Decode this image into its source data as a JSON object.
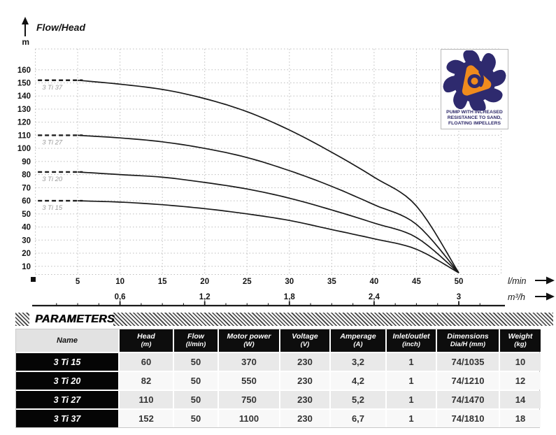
{
  "chart": {
    "title": "Flow/Head",
    "y_unit": "m",
    "x_unit_primary": "l/min",
    "x_unit_secondary": "m³/h"
  },
  "chart_data": {
    "type": "line",
    "title": "Flow/Head",
    "ylabel": "m",
    "xlabel_primary": "l/min",
    "xlabel_secondary": "m³/h",
    "xlim": [
      0,
      55
    ],
    "ylim": [
      0,
      175
    ],
    "grid": true,
    "y_ticks": [
      160,
      150,
      140,
      130,
      120,
      110,
      100,
      90,
      80,
      70,
      60,
      50,
      40,
      30,
      20,
      10
    ],
    "x_ticks_lmin": [
      5,
      10,
      15,
      20,
      25,
      30,
      35,
      40,
      45,
      50
    ],
    "x_ticks_m3h": [
      {
        "x": 10,
        "label": "0,6"
      },
      {
        "x": 20,
        "label": "1,2"
      },
      {
        "x": 30,
        "label": "1,8"
      },
      {
        "x": 40,
        "label": "2,4"
      },
      {
        "x": 50,
        "label": "3"
      }
    ],
    "series": [
      {
        "name": "3 Ti 37",
        "shutoff_head": 152,
        "points": [
          [
            0,
            152
          ],
          [
            5,
            152
          ],
          [
            10,
            149
          ],
          [
            15,
            145
          ],
          [
            20,
            138
          ],
          [
            25,
            128
          ],
          [
            30,
            114
          ],
          [
            35,
            97
          ],
          [
            40,
            78
          ],
          [
            45,
            56
          ],
          [
            50,
            5
          ]
        ]
      },
      {
        "name": "3 Ti 27",
        "shutoff_head": 110,
        "points": [
          [
            0,
            110
          ],
          [
            5,
            110
          ],
          [
            10,
            108
          ],
          [
            15,
            105
          ],
          [
            20,
            100
          ],
          [
            25,
            93
          ],
          [
            30,
            83
          ],
          [
            35,
            71
          ],
          [
            40,
            57
          ],
          [
            45,
            42
          ],
          [
            50,
            5
          ]
        ]
      },
      {
        "name": "3 Ti 20",
        "shutoff_head": 82,
        "points": [
          [
            0,
            82
          ],
          [
            5,
            82
          ],
          [
            10,
            80
          ],
          [
            15,
            78
          ],
          [
            20,
            74
          ],
          [
            25,
            69
          ],
          [
            30,
            62
          ],
          [
            35,
            53
          ],
          [
            40,
            43
          ],
          [
            45,
            32
          ],
          [
            50,
            5
          ]
        ]
      },
      {
        "name": "3 Ti 15",
        "shutoff_head": 60,
        "points": [
          [
            0,
            60
          ],
          [
            5,
            60
          ],
          [
            10,
            59
          ],
          [
            15,
            57
          ],
          [
            20,
            54
          ],
          [
            25,
            50
          ],
          [
            30,
            45
          ],
          [
            35,
            38
          ],
          [
            40,
            31
          ],
          [
            45,
            23
          ],
          [
            50,
            5
          ]
        ]
      }
    ]
  },
  "logo": {
    "caption_lines": [
      "PUMP WITH INCREASED",
      "RESISTANCE TO SAND,",
      "FLOATING IMPELLERS"
    ],
    "navy": "#2e2a6e",
    "orange": "#ef8b1d"
  },
  "table": {
    "section_title": "PARAMETERS",
    "columns": [
      {
        "label": "Name",
        "sub": ""
      },
      {
        "label": "Head",
        "sub": "(m)"
      },
      {
        "label": "Flow",
        "sub": "(l/min)"
      },
      {
        "label": "Motor power",
        "sub": "(W)"
      },
      {
        "label": "Voltage",
        "sub": "(V)"
      },
      {
        "label": "Amperage",
        "sub": "(A)"
      },
      {
        "label": "Inlet/outlet",
        "sub": "(inch)"
      },
      {
        "label": "Dimensions",
        "sub": "Dia/H (mm)"
      },
      {
        "label": "Weight",
        "sub": "(kg)"
      }
    ],
    "rows": [
      {
        "name": "3 Ti 15",
        "values": [
          "60",
          "50",
          "370",
          "230",
          "3,2",
          "1",
          "74/1035",
          "10"
        ]
      },
      {
        "name": "3 Ti 20",
        "values": [
          "82",
          "50",
          "550",
          "230",
          "4,2",
          "1",
          "74/1210",
          "12"
        ]
      },
      {
        "name": "3 Ti 27",
        "values": [
          "110",
          "50",
          "750",
          "230",
          "5,2",
          "1",
          "74/1470",
          "14"
        ]
      },
      {
        "name": "3 Ti 37",
        "values": [
          "152",
          "50",
          "1100",
          "230",
          "6,7",
          "1",
          "74/1810",
          "18"
        ]
      }
    ]
  }
}
